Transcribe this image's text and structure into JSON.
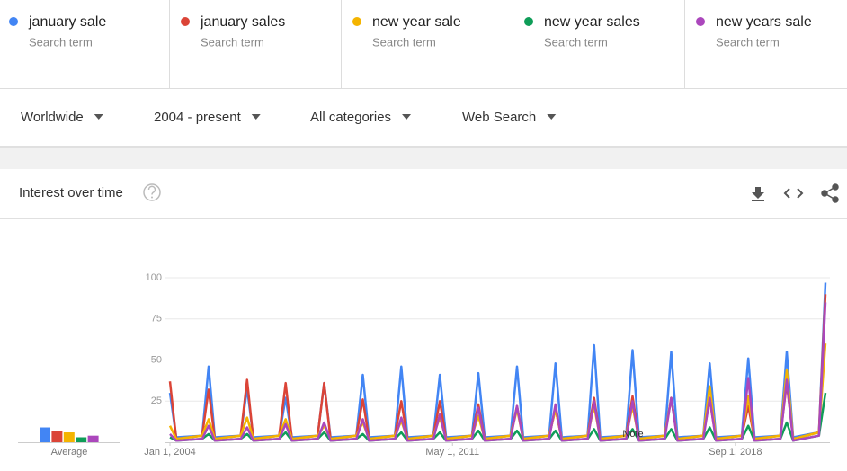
{
  "search_term_label": "Search term",
  "filters": [
    "Worldwide",
    "2004 - present",
    "All categories",
    "Web Search"
  ],
  "card_title": "Interest over time",
  "chart_data": {
    "type": "line",
    "x": [
      "2004-01-01",
      "2004-03-01",
      "2004-11-01",
      "2005-01-01",
      "2005-03-01",
      "2005-11-01",
      "2006-01-01",
      "2006-03-01",
      "2006-11-01",
      "2007-01-01",
      "2007-03-01",
      "2007-11-01",
      "2008-01-01",
      "2008-03-01",
      "2008-11-01",
      "2009-01-01",
      "2009-03-01",
      "2009-11-01",
      "2010-01-01",
      "2010-03-01",
      "2010-11-01",
      "2011-01-01",
      "2011-03-01",
      "2011-11-01",
      "2012-01-01",
      "2012-03-01",
      "2012-11-01",
      "2013-01-01",
      "2013-03-01",
      "2013-11-01",
      "2014-01-01",
      "2014-03-01",
      "2014-11-01",
      "2015-01-01",
      "2015-03-01",
      "2015-11-01",
      "2016-01-01",
      "2016-03-01",
      "2016-11-01",
      "2017-01-01",
      "2017-03-01",
      "2017-11-01",
      "2018-01-01",
      "2018-03-01",
      "2018-11-01",
      "2019-01-01",
      "2019-03-01",
      "2019-11-01",
      "2020-01-01",
      "2020-03-01",
      "2020-11-01",
      "2021-01-01"
    ],
    "series": [
      {
        "name": "january sale",
        "color": "#4285f4",
        "average": 9,
        "values": [
          30,
          3,
          4,
          46,
          3,
          4,
          33,
          3,
          4,
          27,
          3,
          4,
          36,
          3,
          4,
          41,
          3,
          4,
          46,
          3,
          4,
          41,
          3,
          4,
          42,
          3,
          4,
          46,
          3,
          4,
          48,
          3,
          4,
          59,
          3,
          4,
          56,
          3,
          4,
          55,
          3,
          4,
          48,
          3,
          4,
          51,
          3,
          4,
          55,
          3,
          6,
          97
        ]
      },
      {
        "name": "january sales",
        "color": "#db4437",
        "average": 7,
        "values": [
          37,
          2,
          4,
          32,
          2,
          4,
          38,
          2,
          4,
          36,
          2,
          4,
          36,
          2,
          4,
          26,
          2,
          4,
          25,
          2,
          4,
          25,
          2,
          4,
          23,
          2,
          4,
          22,
          2,
          4,
          20,
          2,
          4,
          27,
          2,
          4,
          28,
          2,
          4,
          27,
          2,
          4,
          26,
          2,
          4,
          22,
          2,
          4,
          36,
          2,
          6,
          90
        ]
      },
      {
        "name": "new year sale",
        "color": "#f4b400",
        "average": 6,
        "values": [
          10,
          2,
          4,
          14,
          2,
          4,
          15,
          2,
          4,
          14,
          2,
          4,
          10,
          2,
          4,
          12,
          2,
          4,
          13,
          2,
          4,
          15,
          2,
          4,
          16,
          2,
          4,
          20,
          2,
          4,
          20,
          2,
          4,
          22,
          2,
          4,
          22,
          2,
          4,
          27,
          2,
          4,
          34,
          2,
          4,
          28,
          2,
          4,
          44,
          2,
          6,
          60
        ]
      },
      {
        "name": "new year sales",
        "color": "#0f9d58",
        "average": 3,
        "values": [
          3,
          1,
          2,
          5,
          1,
          2,
          5,
          1,
          2,
          6,
          1,
          2,
          6,
          1,
          2,
          5,
          1,
          2,
          6,
          1,
          2,
          6,
          1,
          2,
          7,
          1,
          2,
          7,
          1,
          2,
          7,
          1,
          2,
          8,
          1,
          2,
          8,
          1,
          2,
          8,
          1,
          2,
          9,
          1,
          2,
          10,
          1,
          2,
          12,
          1,
          4,
          30
        ]
      },
      {
        "name": "new years sale",
        "color": "#ab47bc",
        "average": 4,
        "values": [
          5,
          1,
          2,
          10,
          1,
          2,
          9,
          1,
          2,
          11,
          1,
          2,
          12,
          1,
          2,
          14,
          1,
          2,
          15,
          1,
          2,
          17,
          1,
          2,
          21,
          1,
          2,
          22,
          1,
          2,
          23,
          1,
          2,
          25,
          1,
          2,
          25,
          1,
          2,
          27,
          1,
          2,
          27,
          1,
          2,
          39,
          1,
          2,
          38,
          1,
          4,
          85
        ]
      }
    ],
    "average_label": "Average",
    "xlim": [
      "2004-01-01",
      "2021-01-01"
    ],
    "xticks": [
      {
        "value": "2004-01-01",
        "label": "Jan 1, 2004"
      },
      {
        "value": "2011-05-01",
        "label": "May 1, 2011"
      },
      {
        "value": "2018-09-01",
        "label": "Sep 1, 2018"
      }
    ],
    "ylim": [
      0,
      100
    ],
    "yticks": [
      25,
      50,
      75,
      100
    ],
    "grid": true,
    "annotation": "Note"
  }
}
